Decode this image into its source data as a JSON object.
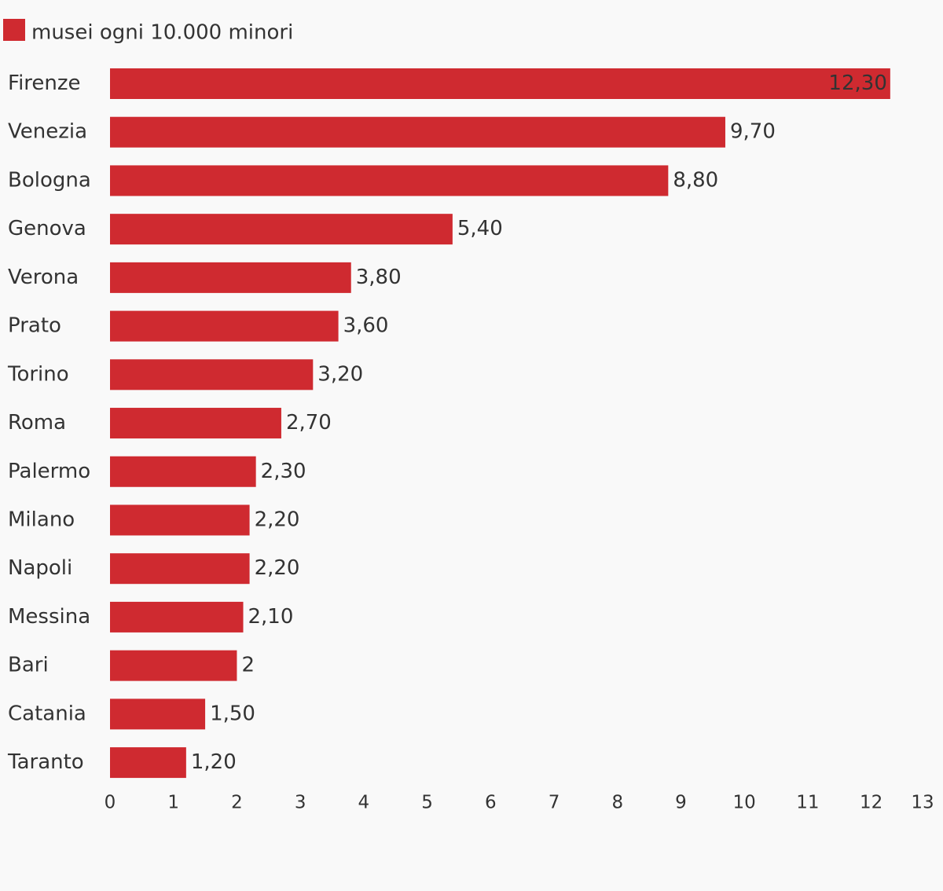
{
  "chart_data": {
    "type": "bar",
    "orientation": "horizontal",
    "title": "",
    "xlabel": "",
    "ylabel": "",
    "legend": {
      "position": "top-left",
      "entries": [
        "musei ogni 10.000 minori"
      ]
    },
    "series": [
      {
        "name": "musei ogni 10.000 minori",
        "color": "#cf2a30",
        "values": [
          12.3,
          9.7,
          8.8,
          5.4,
          3.8,
          3.6,
          3.2,
          2.7,
          2.3,
          2.2,
          2.2,
          2.1,
          2.0,
          1.5,
          1.2
        ],
        "labels": [
          "12,30",
          "9,70",
          "8,80",
          "5,40",
          "3,80",
          "3,60",
          "3,20",
          "2,70",
          "2,30",
          "2,20",
          "2,20",
          "2,10",
          "2",
          "1,50",
          "1,20"
        ]
      }
    ],
    "categories": [
      "Firenze",
      "Venezia",
      "Bologna",
      "Genova",
      "Verona",
      "Prato",
      "Torino",
      "Roma",
      "Palermo",
      "Milano",
      "Napoli",
      "Messina",
      "Bari",
      "Catania",
      "Taranto"
    ],
    "xlim": [
      0,
      13
    ],
    "xticks": [
      0,
      1,
      2,
      3,
      4,
      5,
      6,
      7,
      8,
      9,
      10,
      11,
      12,
      13
    ],
    "xtick_labels": [
      "0",
      "1",
      "2",
      "3",
      "4",
      "5",
      "6",
      "7",
      "8",
      "9",
      "10",
      "11",
      "12",
      "13"
    ],
    "grid": false
  },
  "colors": {
    "background": "#f9f9f9",
    "bar": "#cf2a30",
    "text": "#333333"
  }
}
